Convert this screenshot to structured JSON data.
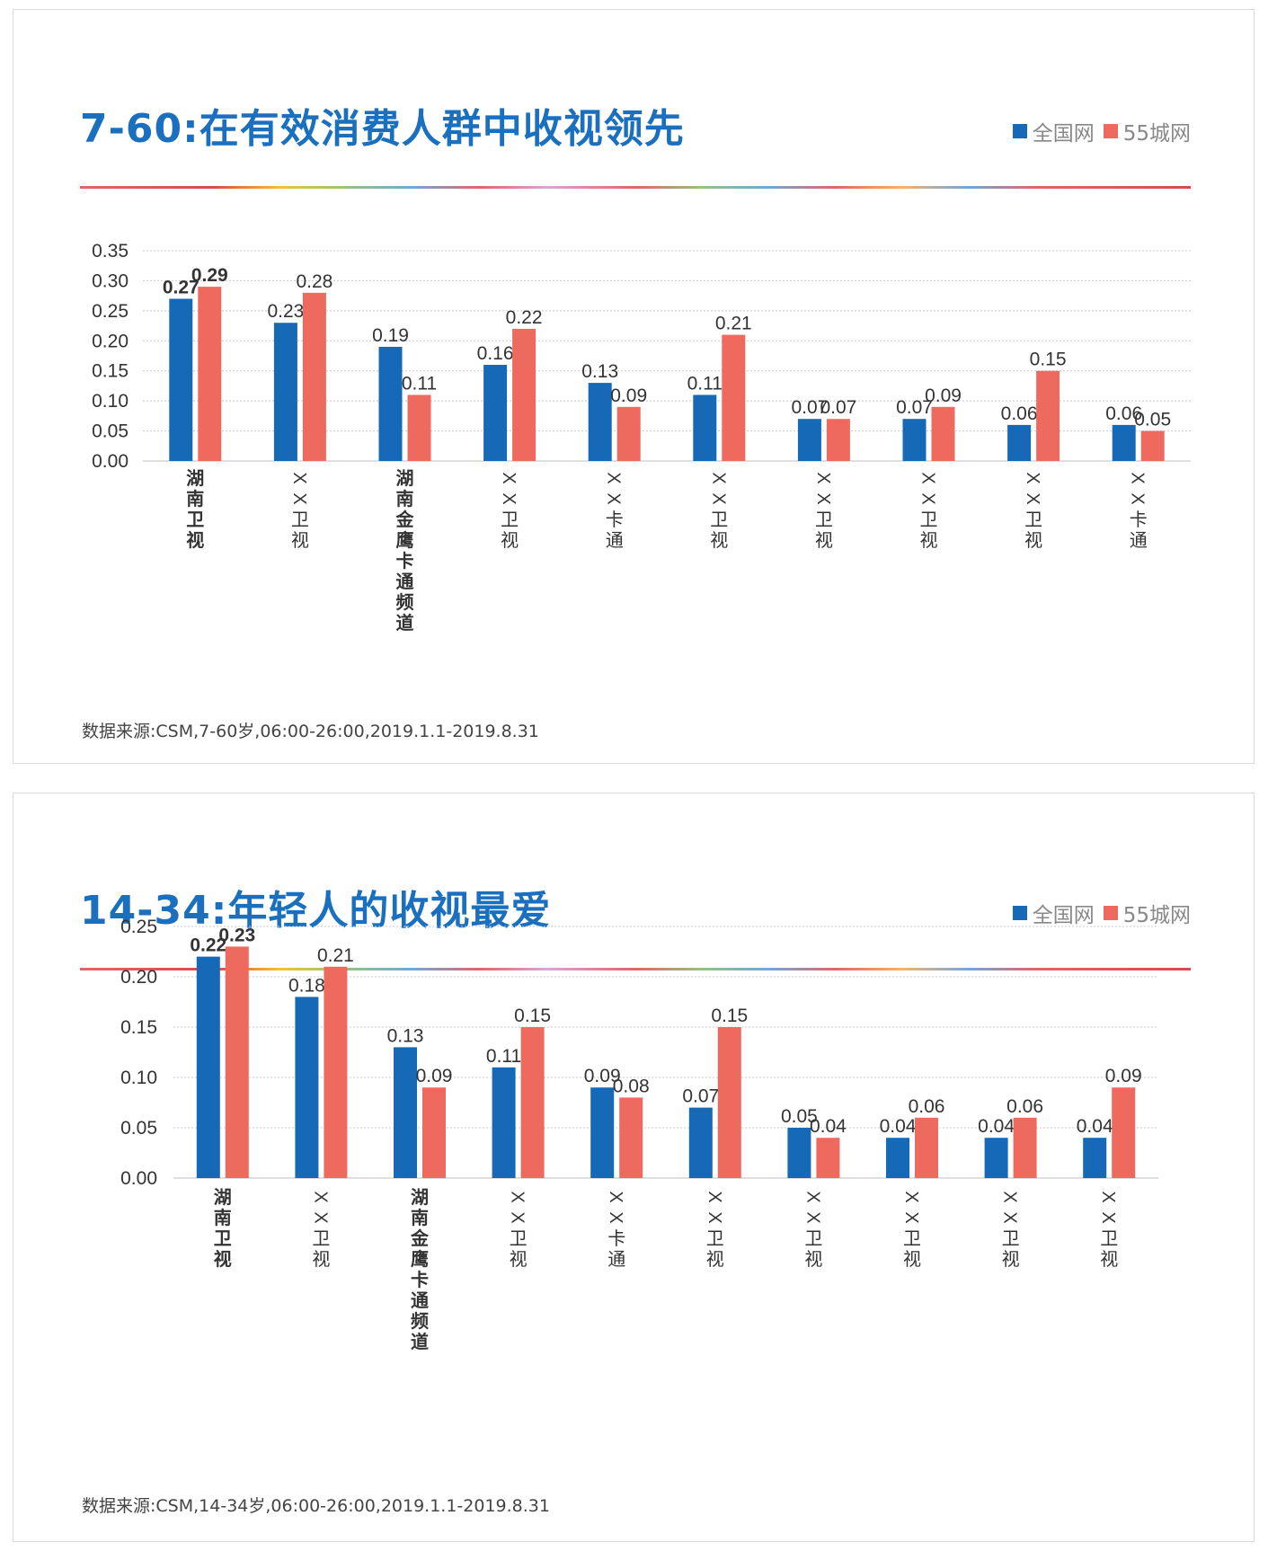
{
  "colors": {
    "national": "#1669b6",
    "city55": "#ee6a5e",
    "title": "#1a6fbf"
  },
  "chart_data": [
    {
      "type": "bar",
      "title": "7-60:在有效消费人群中收视领先",
      "legend": [
        "全国网",
        "55城网"
      ],
      "categories": [
        "湖南卫视",
        "XX卫视",
        "湖南金鹰卡通频道",
        "XX卫视",
        "XX卡通",
        "XX卫视",
        "XX卫视",
        "XX卫视",
        "XX卫视",
        "XX卡通"
      ],
      "series": [
        {
          "name": "全国网",
          "values": [
            0.27,
            0.23,
            0.19,
            0.16,
            0.13,
            0.11,
            0.07,
            0.07,
            0.06,
            0.06
          ]
        },
        {
          "name": "55城网",
          "values": [
            0.29,
            0.28,
            0.11,
            0.22,
            0.09,
            0.21,
            0.07,
            0.09,
            0.15,
            0.05
          ]
        }
      ],
      "yticks": [
        "0.00",
        "0.05",
        "0.10",
        "0.15",
        "0.20",
        "0.25",
        "0.30",
        "0.35"
      ],
      "ylim": [
        0,
        0.35
      ],
      "source": "数据来源:CSM,7-60岁,06:00-26:00,2019.1.1-2019.8.31"
    },
    {
      "type": "bar",
      "title": "14-34:年轻人的收视最爱",
      "legend": [
        "全国网",
        "55城网"
      ],
      "categories": [
        "湖南卫视",
        "XX卫视",
        "湖南金鹰卡通频道",
        "XX卫视",
        "XX卡通",
        "XX卫视",
        "XX卫视",
        "XX卫视",
        "XX卫视",
        "XX卫视"
      ],
      "series": [
        {
          "name": "全国网",
          "values": [
            0.22,
            0.18,
            0.13,
            0.11,
            0.09,
            0.07,
            0.05,
            0.04,
            0.04,
            0.04
          ]
        },
        {
          "name": "55城网",
          "values": [
            0.23,
            0.21,
            0.09,
            0.15,
            0.08,
            0.15,
            0.04,
            0.06,
            0.06,
            0.09
          ]
        }
      ],
      "yticks": [
        "0.00",
        "0.05",
        "0.10",
        "0.15",
        "0.20",
        "0.25"
      ],
      "ylim": [
        0,
        0.25
      ],
      "source": "数据来源:CSM,14-34岁,06:00-26:00,2019.1.1-2019.8.31"
    }
  ]
}
